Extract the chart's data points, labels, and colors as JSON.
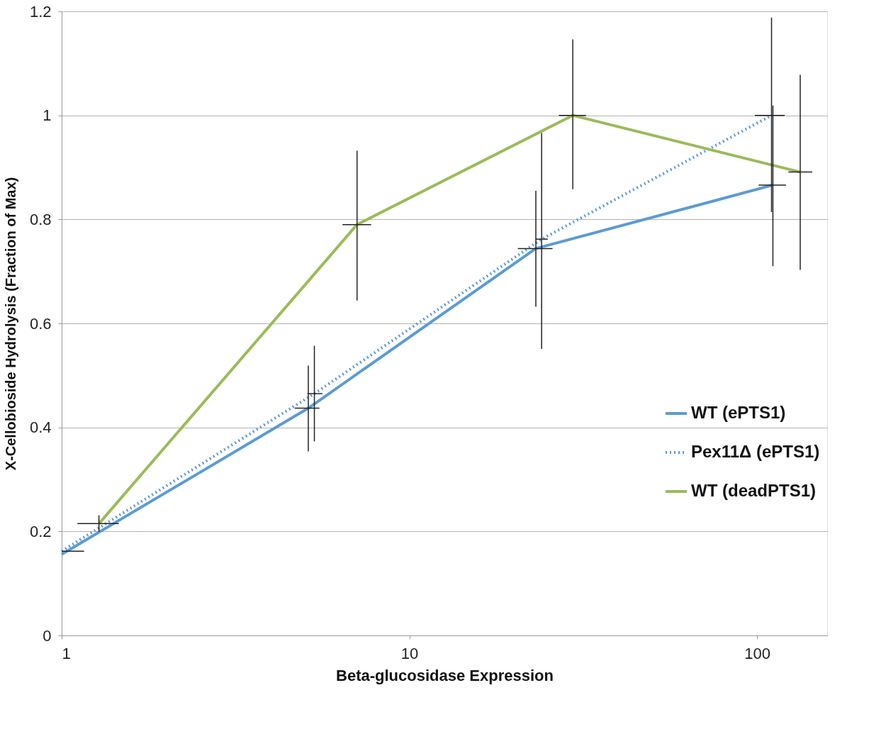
{
  "chart_data": {
    "type": "line",
    "xlabel": "Beta-glucosidase Expression",
    "ylabel": "X-Cellobioside Hydrolysis (Fraction of Max)",
    "log": "x",
    "xlim": [
      1,
      159
    ],
    "xticks": [
      1,
      10,
      100
    ],
    "ylim": [
      0,
      1.2
    ],
    "yticks": [
      0,
      0.2,
      0.4,
      0.6,
      0.8,
      1,
      1.2
    ],
    "grid": "y",
    "legend": "right",
    "marker": "none",
    "series": [
      {
        "name": "WT (ePTS1)",
        "color": "#5b9bd5",
        "line_style": "solid",
        "x": [
          1,
          5.12,
          23.1,
          111
        ],
        "values": [
          0.156,
          0.437,
          0.744,
          0.866
        ],
        "errors": [
          null,
          [
            0.354,
            0.519
          ],
          [
            0.632,
            0.855
          ],
          [
            0.71,
            1.019
          ]
        ],
        "xerrors": [
          null,
          [
            4.68,
            5.51
          ],
          [
            20.5,
            25.8
          ],
          [
            101,
            121
          ]
        ]
      },
      {
        "name": "Pex11Δ  (ePTS1)",
        "color": "#5b9bd5",
        "line_style": "dotted",
        "x": [
          1,
          5.33,
          24.0,
          110
        ],
        "values": [
          0.162,
          0.465,
          0.762,
          1.0
        ],
        "errors": [
          null,
          [
            0.373,
            0.557
          ],
          [
            0.551,
            0.966
          ],
          [
            0.814,
            1.188
          ]
        ],
        "xerrors": [
          [
            1,
            1.16
          ],
          [
            5.09,
            5.62
          ],
          [
            23.1,
            25.0
          ],
          [
            98.5,
            120
          ]
        ]
      },
      {
        "name": "WT (deadPTS1)",
        "color": "#9bbb59",
        "line_style": "solid",
        "x": [
          1.28,
          7.07,
          29.5,
          133
        ],
        "values": [
          0.215,
          0.79,
          1.0,
          0.891
        ],
        "errors": [
          [
            0.199,
            0.231
          ],
          [
            0.644,
            0.932
          ],
          [
            0.858,
            1.146
          ],
          [
            0.703,
            1.078
          ]
        ],
        "xerrors": [
          [
            1.11,
            1.46
          ],
          [
            6.42,
            7.76
          ],
          [
            26.9,
            32.2
          ],
          [
            123,
            144
          ]
        ]
      }
    ]
  }
}
